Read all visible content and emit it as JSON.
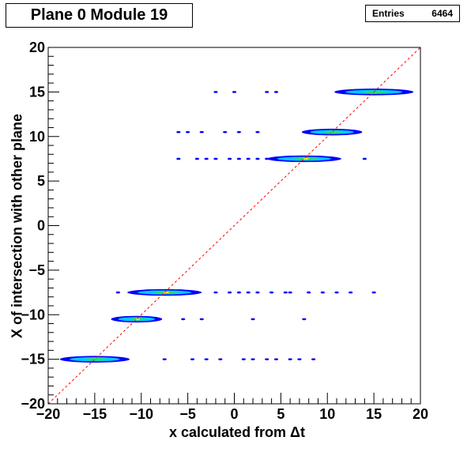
{
  "title": "Plane 0 Module 19",
  "stats": {
    "label": "Entries",
    "value": "6464"
  },
  "colors": {
    "axis": "#000000",
    "diagonal": "#ff0000",
    "blue": "#0000ff",
    "cyan": "#00c8ff",
    "green": "#22dd66",
    "yellow": "#ffee00"
  },
  "chart_data": {
    "type": "heatmap",
    "title": "Plane 0 Module 19",
    "xlabel": "x calculated from Δt",
    "ylabel": "X of intersection with other plane",
    "xlim": [
      -20,
      20
    ],
    "ylim": [
      -20,
      20
    ],
    "xticks": [
      -20,
      -15,
      -10,
      -5,
      0,
      5,
      10,
      15,
      20
    ],
    "yticks": [
      -20,
      -15,
      -10,
      -5,
      0,
      5,
      10,
      15,
      20
    ],
    "grid": false,
    "diagonal_line": {
      "from": [
        -20,
        -20
      ],
      "to": [
        20,
        20
      ],
      "style": "dashed"
    },
    "clusters": [
      {
        "x": -15,
        "y": -15,
        "xwidth": 7.5,
        "peak": "cyan"
      },
      {
        "x": -10.5,
        "y": -10.5,
        "xwidth": 5.5,
        "peak": "green"
      },
      {
        "x": -7.5,
        "y": -7.5,
        "xwidth": 8.0,
        "peak": "green"
      },
      {
        "x": 7.5,
        "y": 7.5,
        "xwidth": 8.0,
        "peak": "green"
      },
      {
        "x": 10.5,
        "y": 10.5,
        "xwidth": 6.5,
        "peak": "cyan"
      },
      {
        "x": 15,
        "y": 15,
        "xwidth": 8.5,
        "peak": "cyan"
      }
    ],
    "sparse_points": [
      {
        "y": -15,
        "x": [
          -7.5,
          -4.5,
          -3,
          -1.5,
          1,
          2,
          3.5,
          4.5,
          6,
          7,
          8.5
        ]
      },
      {
        "y": -10.5,
        "x": [
          -5.5,
          -3.5,
          2,
          7.5
        ]
      },
      {
        "y": -7.5,
        "x": [
          -12.5,
          -2,
          -0.5,
          0.5,
          1.5,
          2.5,
          4,
          5.5,
          6,
          8,
          9.5,
          11,
          12.5,
          15
        ]
      },
      {
        "y": 7.5,
        "x": [
          -6,
          -4,
          -3,
          -2,
          -0.5,
          0.5,
          1.5,
          2.5,
          3.5,
          14
        ]
      },
      {
        "y": 10.5,
        "x": [
          -6,
          -5,
          -3.5,
          -1,
          0.5,
          2.5
        ]
      },
      {
        "y": 15,
        "x": [
          -2,
          0,
          3.5,
          4.5
        ]
      }
    ]
  }
}
